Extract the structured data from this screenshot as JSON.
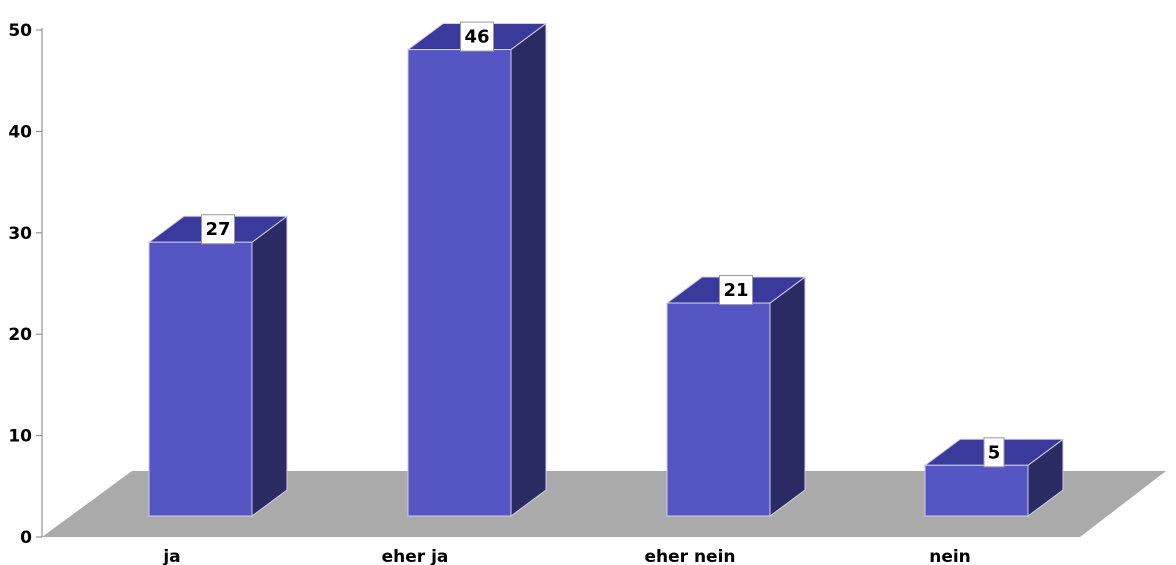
{
  "chart_data": {
    "type": "bar",
    "style": "3d-column",
    "categories": [
      "ja",
      "eher ja",
      "eher nein",
      "nein"
    ],
    "values": [
      27,
      46,
      21,
      5
    ],
    "data_labels": [
      "27",
      "46",
      "21",
      "5"
    ],
    "title": "",
    "xlabel": "",
    "ylabel": "",
    "ylim": [
      0,
      50
    ],
    "y_ticks": [
      0,
      10,
      20,
      30,
      40,
      50
    ],
    "y_tick_labels": [
      "0",
      "10",
      "20",
      "30",
      "40",
      "50"
    ],
    "grid": false,
    "legend": "none",
    "colors": {
      "bar_front": "#5555c4",
      "bar_top": "#3a3a9c",
      "bar_side": "#2b2b63",
      "floor": "#aaaaaa",
      "axis": "#808080"
    }
  }
}
